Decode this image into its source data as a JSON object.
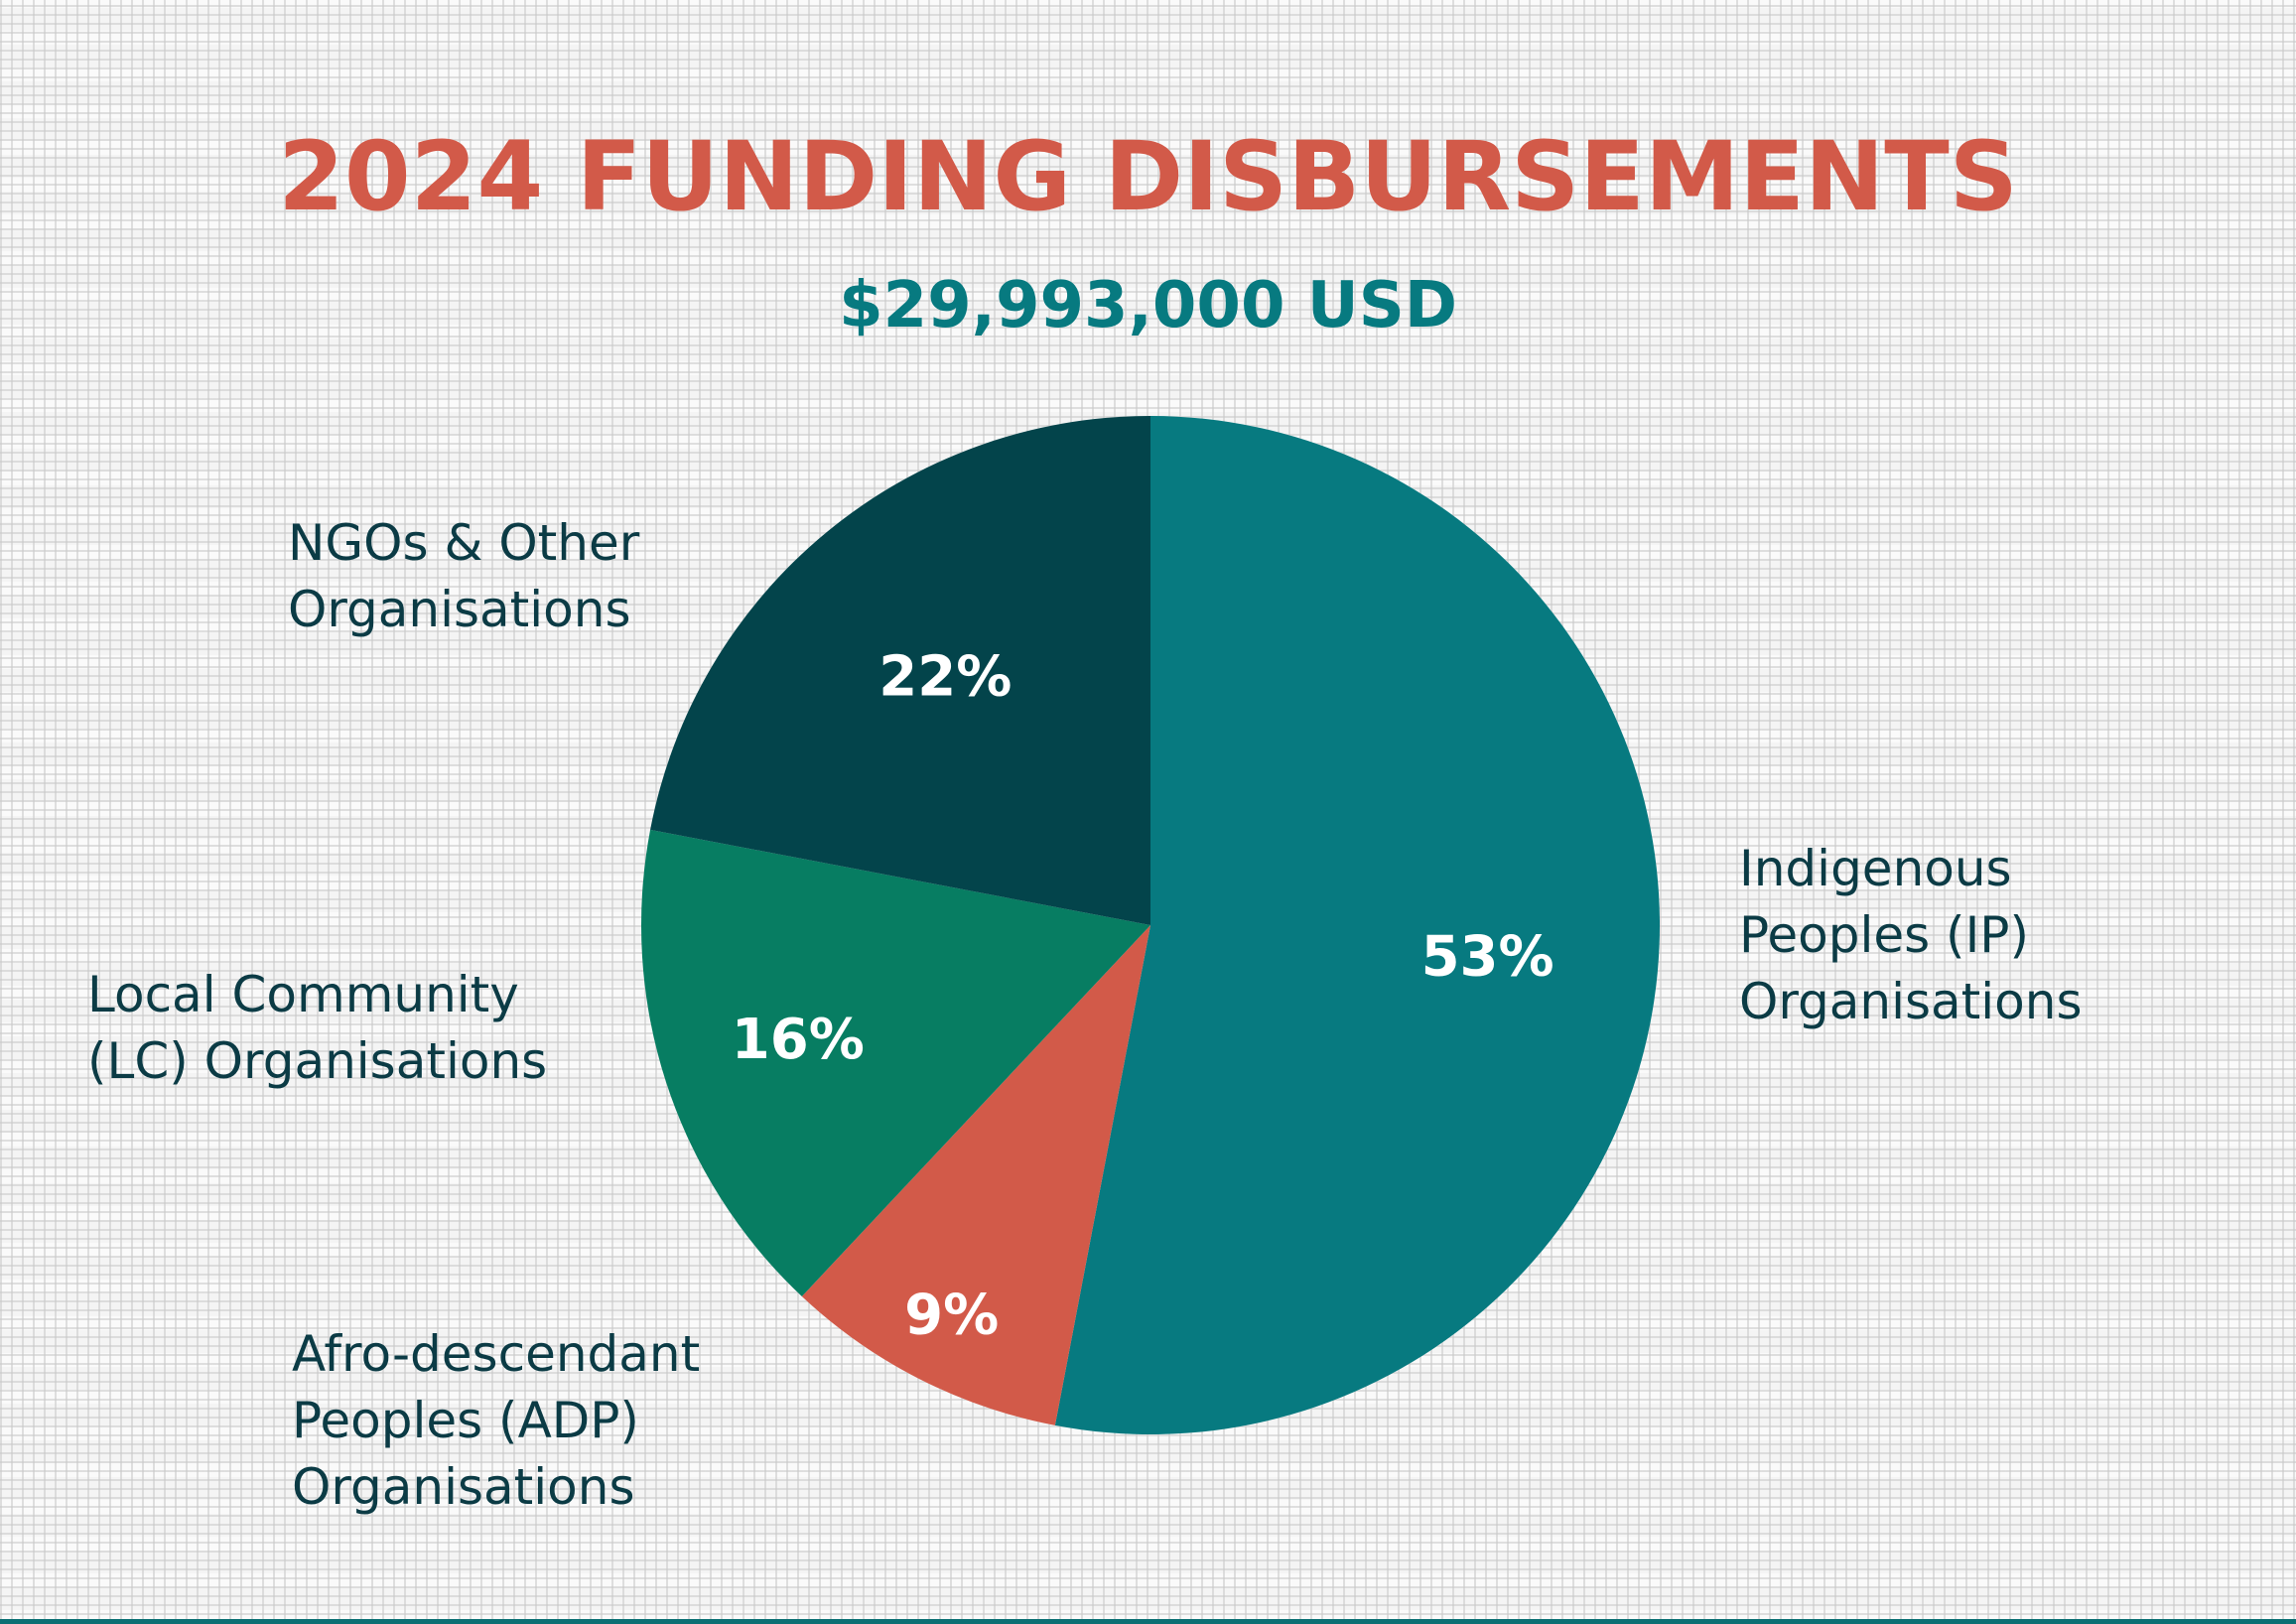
{
  "chart_data": {
    "type": "pie",
    "title": "2024 FUNDING DISBURSEMENTS",
    "subtitle": "$29,993,000 USD",
    "slices": [
      {
        "label": "Indigenous\nPeoples (IP)\nOrganisations",
        "value": 53,
        "display": "53%",
        "color": "#077a80"
      },
      {
        "label": "Afro-descendant\nPeoples (ADP)\nOrganisations",
        "value": 9,
        "display": "9%",
        "color": "#d25a49"
      },
      {
        "label": "Local Community\n(LC) Organisations",
        "value": 16,
        "display": "16%",
        "color": "#077d62"
      },
      {
        "label": "NGOs & Other\nOrganisations",
        "value": 22,
        "display": "22%",
        "color": "#03444b"
      }
    ],
    "start_angle": "12 o'clock",
    "direction": "clockwise",
    "legend": "none (labels placed beside slices)"
  },
  "colors": {
    "title": "#d25a49",
    "subtitle": "#077a80",
    "label_text": "#0b3b45",
    "slice_text": "#ffffff",
    "bottom_rule": "#0b6f73"
  }
}
